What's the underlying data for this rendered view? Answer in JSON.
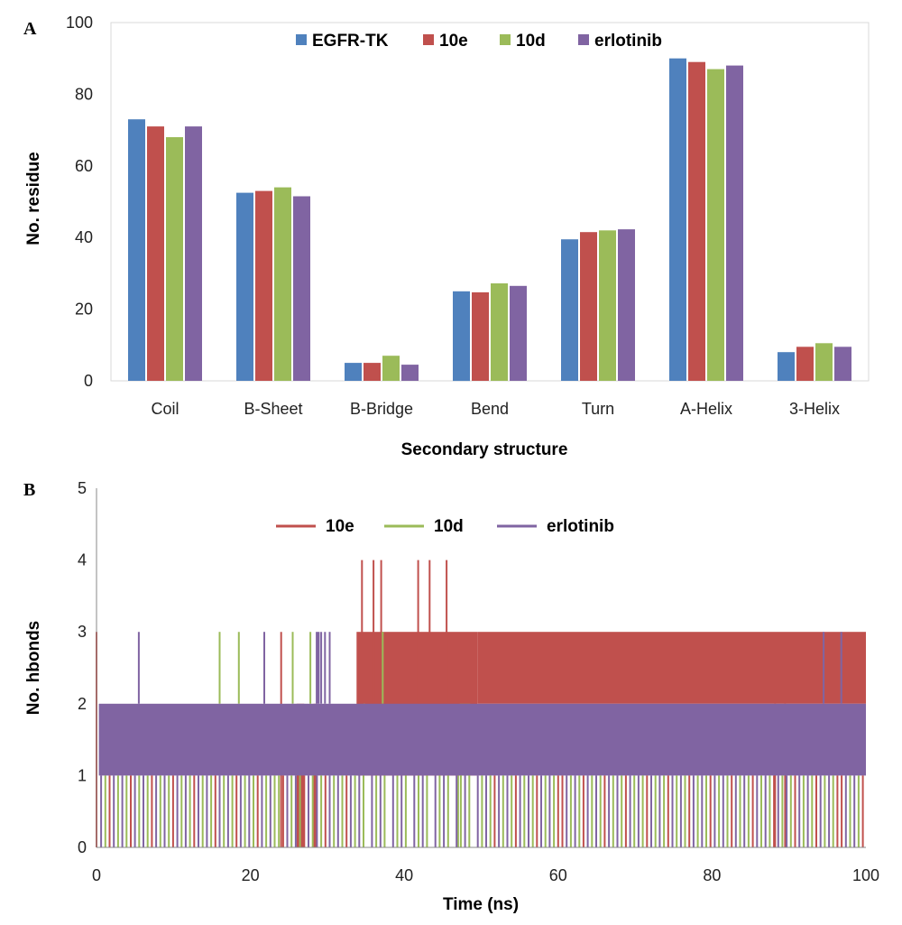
{
  "panels": {
    "a": {
      "label": "A"
    },
    "b": {
      "label": "B"
    }
  },
  "chart_data": [
    {
      "type": "bar",
      "title": "",
      "xlabel": "Secondary structure",
      "ylabel": "No. residue",
      "ylim": [
        0,
        100
      ],
      "yticks": [
        "0",
        "20",
        "40",
        "60",
        "80",
        "100"
      ],
      "categories": [
        "Coil",
        "B-Sheet",
        "B-Bridge",
        "Bend",
        "Turn",
        "A-Helix",
        "3-Helix"
      ],
      "series": [
        {
          "name": "EGFR-TK",
          "color": "#4f81bd",
          "values": [
            73,
            52.5,
            5,
            25,
            39.5,
            90,
            8
          ]
        },
        {
          "name": "10e",
          "color": "#c0504d",
          "values": [
            71,
            53,
            5,
            24.7,
            41.5,
            89,
            9.5
          ]
        },
        {
          "name": "10d",
          "color": "#9bbb59",
          "values": [
            68,
            54,
            7,
            27.2,
            42,
            87,
            10.5
          ]
        },
        {
          "name": "erlotinib",
          "color": "#8064a2",
          "values": [
            71,
            51.5,
            4.5,
            26.5,
            42.3,
            88,
            9.5
          ]
        }
      ],
      "grid": false,
      "legend": "top"
    },
    {
      "type": "line",
      "title": "",
      "xlabel": "Time (ns)",
      "ylabel": "No. hbonds",
      "xlim": [
        0,
        100
      ],
      "ylim": [
        0,
        5
      ],
      "xticks": [
        "0",
        "20",
        "40",
        "60",
        "80",
        "100"
      ],
      "yticks": [
        "0",
        "1",
        "2",
        "3",
        "4",
        "5"
      ],
      "series": [
        {
          "name": "10e",
          "color": "#c0504d",
          "bands": [
            {
              "from": 26.0,
              "to": 27.0,
              "low": 0,
              "high": 2
            },
            {
              "from": 28.2,
              "to": 28.6,
              "low": 0,
              "high": 2
            },
            {
              "from": 33.8,
              "to": 49.5,
              "low": 1,
              "high": 3
            },
            {
              "from": 49.5,
              "to": 100,
              "low": 2,
              "high": 3
            }
          ],
          "spikes": [
            {
              "x": 0,
              "low": 0,
              "high": 3
            },
            {
              "x": 24.0,
              "low": 0,
              "high": 3
            },
            {
              "x": 34.5,
              "low": 2,
              "high": 4
            },
            {
              "x": 36.0,
              "low": 2,
              "high": 4
            },
            {
              "x": 37.0,
              "low": 2,
              "high": 4
            },
            {
              "x": 41.8,
              "low": 2,
              "high": 4
            },
            {
              "x": 43.3,
              "low": 2,
              "high": 4
            },
            {
              "x": 45.5,
              "low": 2,
              "high": 4
            },
            {
              "x": 88.2,
              "low": 0,
              "high": 2
            },
            {
              "x": 89.5,
              "low": 0,
              "high": 2
            }
          ]
        },
        {
          "name": "10d",
          "color": "#9bbb59",
          "bands": [
            {
              "from": 47.2,
              "to": 48.6,
              "low": 1,
              "high": 2
            }
          ],
          "spikes": [
            {
              "x": 16.0,
              "low": 2,
              "high": 3
            },
            {
              "x": 18.5,
              "low": 2,
              "high": 3
            },
            {
              "x": 25.5,
              "low": 2,
              "high": 3
            },
            {
              "x": 27.8,
              "low": 2,
              "high": 3
            },
            {
              "x": 37.2,
              "low": 2,
              "high": 3
            },
            {
              "x": 34.8,
              "low": 1,
              "high": 2
            },
            {
              "x": 47.0,
              "low": 0,
              "high": 1
            }
          ]
        },
        {
          "name": "erlotinib",
          "color": "#8064a2",
          "bands": [
            {
              "from": 0.3,
              "to": 100,
              "low": 1,
              "high": 2
            },
            {
              "from": 28.5,
              "to": 29.0,
              "low": 2,
              "high": 3
            }
          ],
          "spikes": [
            {
              "x": 5.5,
              "low": 2,
              "high": 3
            },
            {
              "x": 21.8,
              "low": 2,
              "high": 3
            },
            {
              "x": 29.2,
              "low": 2,
              "high": 3
            },
            {
              "x": 29.7,
              "low": 2,
              "high": 3
            },
            {
              "x": 30.3,
              "low": 2,
              "high": 3
            },
            {
              "x": 94.5,
              "low": 2,
              "high": 3
            },
            {
              "x": 96.8,
              "low": 2,
              "high": 3
            }
          ]
        }
      ],
      "grid": false,
      "legend": "top"
    }
  ]
}
